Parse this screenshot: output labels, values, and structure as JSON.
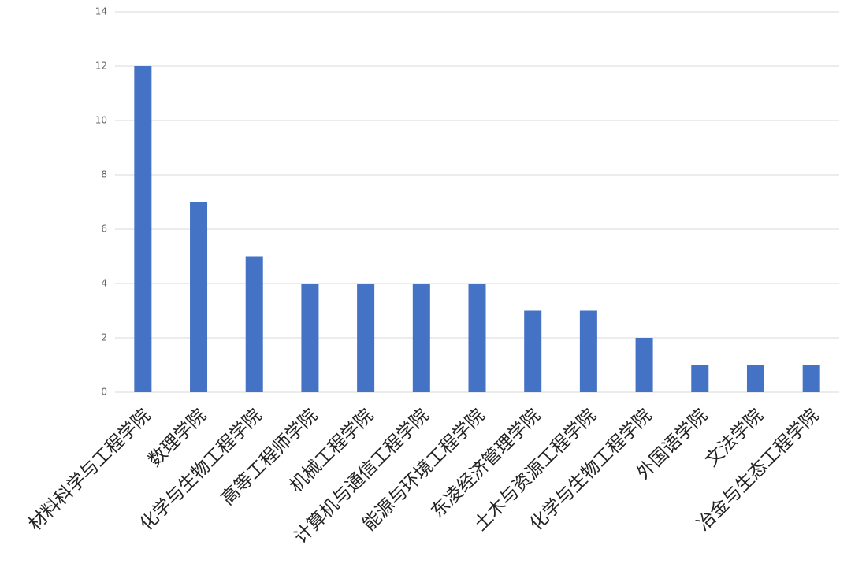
{
  "chart_data": {
    "type": "bar",
    "categories": [
      "材料科学与工程学院",
      "数理学院",
      "化学与生物工程学院",
      "高等工程师学院",
      "机械工程学院",
      "计算机与通信工程学院",
      "能源与环境工程学院",
      "东凌经济管理学院",
      "土木与资源工程学院",
      "化学与生物工程学院",
      "外国语学院",
      "文法学院",
      "冶金与生态工程学院"
    ],
    "values": [
      12,
      7,
      5,
      4,
      4,
      4,
      4,
      3,
      3,
      2,
      1,
      1,
      1
    ],
    "color": "#4472c4",
    "ylim": [
      0,
      14
    ],
    "yticks": [
      0,
      2,
      4,
      6,
      8,
      10,
      12,
      14
    ],
    "grid": true
  }
}
